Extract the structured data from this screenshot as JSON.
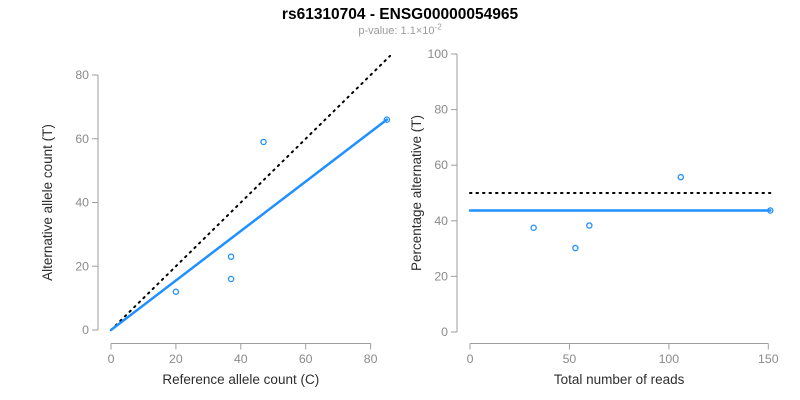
{
  "header": {
    "title": "rs61310704 - ENSG00000054965",
    "p_value": {
      "label": "p-value: ",
      "mantissa": "1.1",
      "multiplier": "×",
      "base": "10",
      "exponent": "-2"
    }
  },
  "colors": {
    "point_blue": "#1E90FF",
    "fit_blue": "#1E90FF",
    "dotted_black": "#000000",
    "axis_gray": "#9e9e9e",
    "tick_label_gray": "#8a8a8a",
    "axis_title_color": "#2e2e2e",
    "title_black": "#000000",
    "subtitle_gray": "#9b9b9b"
  },
  "chart_data": [
    {
      "type": "scatter",
      "title": "",
      "xlabel": "Reference allele count (C)",
      "ylabel": "Alternative allele count (T)",
      "xlim": [
        0,
        86
      ],
      "ylim": [
        0,
        86
      ],
      "xticks": [
        0,
        20,
        40,
        60,
        80
      ],
      "yticks": [
        0,
        20,
        40,
        60,
        80
      ],
      "grid": false,
      "legend": "none",
      "point_color": "#1E90FF",
      "points": [
        [
          20,
          12
        ],
        [
          37,
          16
        ],
        [
          37,
          23
        ],
        [
          47,
          59
        ],
        [
          85,
          66
        ]
      ],
      "lines": [
        {
          "name": "identity-line",
          "style": "dotted",
          "color": "#000000",
          "from": [
            0,
            0
          ],
          "to": [
            86,
            86
          ]
        },
        {
          "name": "fit-line",
          "style": "solid",
          "color": "#1E90FF",
          "from": [
            0,
            0
          ],
          "to": [
            85,
            66
          ]
        }
      ]
    },
    {
      "type": "scatter",
      "title": "",
      "xlabel": "Total number of reads",
      "ylabel": "Percentage alternative (T)",
      "xlim": [
        0,
        152
      ],
      "ylim": [
        0,
        100
      ],
      "xticks": [
        0,
        50,
        100,
        150
      ],
      "yticks": [
        0,
        20,
        40,
        60,
        80,
        100
      ],
      "grid": false,
      "legend": "none",
      "point_color": "#1E90FF",
      "points": [
        [
          32,
          37.5
        ],
        [
          53,
          30.2
        ],
        [
          60,
          38.3
        ],
        [
          106,
          55.7
        ],
        [
          151,
          43.7
        ]
      ],
      "lines": [
        {
          "name": "expected-50pct-line",
          "style": "dotted",
          "color": "#000000",
          "from": [
            0,
            50
          ],
          "to": [
            151,
            50
          ]
        },
        {
          "name": "fit-line",
          "style": "solid",
          "color": "#1E90FF",
          "from": [
            0,
            43.7
          ],
          "to": [
            151,
            43.7
          ]
        }
      ]
    }
  ]
}
